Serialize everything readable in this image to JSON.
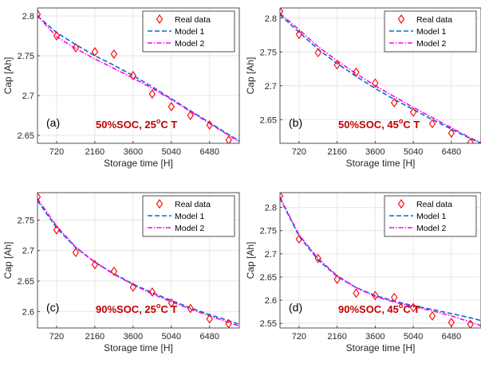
{
  "colors": {
    "real": "#ff0000",
    "model1": "#0072bd",
    "model2": "#ff00ff",
    "condition": "#c00000",
    "grid": "#e6e6e6",
    "axis": "#262626"
  },
  "chart_data": [
    {
      "type": "line",
      "panel_label": "(a)",
      "condition": {
        "main": "50%SOC, 25",
        "sup": "o",
        "suffix": "C T"
      },
      "xlabel": "Storage time [H]",
      "ylabel": "Cap [Ah]",
      "xlim": [
        0,
        7600
      ],
      "ylim": [
        2.64,
        2.81
      ],
      "xticks": [
        720,
        2160,
        3600,
        5040,
        6480
      ],
      "yticks": [
        2.65,
        2.7,
        2.75,
        2.8
      ],
      "legend": [
        "Real data",
        "Model 1",
        "Model 2"
      ],
      "legend_position": "top-right",
      "grid": true,
      "series": [
        {
          "name": "Real data",
          "kind": "marker",
          "x": [
            0,
            720,
            1440,
            2160,
            2880,
            3600,
            4320,
            5040,
            5760,
            6480,
            7200
          ],
          "y": [
            2.802,
            2.775,
            2.76,
            2.755,
            2.752,
            2.725,
            2.702,
            2.686,
            2.675,
            2.663,
            2.644
          ]
        },
        {
          "name": "Model 1",
          "kind": "dashed",
          "x": [
            0,
            720,
            1440,
            2160,
            2880,
            3600,
            4320,
            5040,
            5760,
            6480,
            7200,
            7600
          ],
          "y": [
            2.8,
            2.779,
            2.764,
            2.75,
            2.738,
            2.725,
            2.711,
            2.696,
            2.681,
            2.666,
            2.651,
            2.643
          ]
        },
        {
          "name": "Model 2",
          "kind": "dashdot",
          "x": [
            0,
            720,
            1440,
            2160,
            2880,
            3600,
            4320,
            5040,
            5760,
            6480,
            7200,
            7600
          ],
          "y": [
            2.8,
            2.774,
            2.759,
            2.746,
            2.734,
            2.722,
            2.709,
            2.695,
            2.68,
            2.665,
            2.65,
            2.642
          ]
        }
      ]
    },
    {
      "type": "line",
      "panel_label": "(b)",
      "condition": {
        "main": "50%SOC, 45",
        "sup": "o",
        "suffix": "C T"
      },
      "xlabel": "Storage time [H]",
      "ylabel": "Cap [Ah]",
      "xlim": [
        0,
        7600
      ],
      "ylim": [
        2.615,
        2.815
      ],
      "xticks": [
        720,
        2160,
        3600,
        5040,
        6480
      ],
      "yticks": [
        2.65,
        2.7,
        2.75,
        2.8
      ],
      "legend": [
        "Real data",
        "Model 1",
        "Model 2"
      ],
      "legend_position": "top-right",
      "grid": true,
      "series": [
        {
          "name": "Real data",
          "kind": "marker",
          "x": [
            0,
            720,
            1440,
            2160,
            2880,
            3600,
            4320,
            5040,
            5760,
            6480,
            7200
          ],
          "y": [
            2.81,
            2.776,
            2.749,
            2.731,
            2.72,
            2.704,
            2.675,
            2.661,
            2.644,
            2.63,
            2.616
          ]
        },
        {
          "name": "Model 1",
          "kind": "dashed",
          "x": [
            0,
            720,
            1440,
            2160,
            2880,
            3600,
            4320,
            5040,
            5760,
            6480,
            7200,
            7600
          ],
          "y": [
            2.805,
            2.779,
            2.754,
            2.733,
            2.714,
            2.696,
            2.68,
            2.665,
            2.65,
            2.636,
            2.622,
            2.615
          ]
        },
        {
          "name": "Model 2",
          "kind": "dashdot",
          "x": [
            0,
            720,
            1440,
            2160,
            2880,
            3600,
            4320,
            5040,
            5760,
            6480,
            7200,
            7600
          ],
          "y": [
            2.807,
            2.783,
            2.758,
            2.737,
            2.718,
            2.7,
            2.684,
            2.668,
            2.653,
            2.638,
            2.623,
            2.616
          ]
        }
      ]
    },
    {
      "type": "line",
      "panel_label": "(c)",
      "condition": {
        "main": "90%SOC, 25",
        "sup": "o",
        "suffix": "C T"
      },
      "xlabel": "Storage time [H]",
      "ylabel": "Cap [Ah]",
      "xlim": [
        0,
        7600
      ],
      "ylim": [
        2.573,
        2.795
      ],
      "xticks": [
        720,
        2160,
        3600,
        5040,
        6480
      ],
      "yticks": [
        2.6,
        2.65,
        2.7,
        2.75
      ],
      "legend": [
        "Real data",
        "Model 1",
        "Model 2"
      ],
      "legend_position": "top-right",
      "grid": true,
      "series": [
        {
          "name": "Real data",
          "kind": "marker",
          "x": [
            0,
            720,
            1440,
            2160,
            2880,
            3600,
            4320,
            5040,
            5760,
            6480,
            7200
          ],
          "y": [
            2.788,
            2.734,
            2.697,
            2.677,
            2.666,
            2.64,
            2.632,
            2.614,
            2.605,
            2.588,
            2.58
          ]
        },
        {
          "name": "Model 1",
          "kind": "dashed",
          "x": [
            0,
            720,
            1440,
            2160,
            2880,
            3600,
            4320,
            5040,
            5760,
            6480,
            7200,
            7600
          ],
          "y": [
            2.782,
            2.737,
            2.705,
            2.681,
            2.662,
            2.645,
            2.631,
            2.618,
            2.606,
            2.595,
            2.585,
            2.579
          ]
        },
        {
          "name": "Model 2",
          "kind": "dashdot",
          "x": [
            0,
            720,
            1440,
            2160,
            2880,
            3600,
            4320,
            5040,
            5760,
            6480,
            7200,
            7600
          ],
          "y": [
            2.785,
            2.74,
            2.706,
            2.681,
            2.661,
            2.644,
            2.629,
            2.616,
            2.604,
            2.593,
            2.582,
            2.576
          ]
        }
      ]
    },
    {
      "type": "line",
      "panel_label": "(d)",
      "condition": {
        "main": "90%SOC, 45",
        "sup": "o",
        "suffix": "C T"
      },
      "xlabel": "Storage time [H]",
      "ylabel": "Cap [Ah]",
      "xlim": [
        0,
        7600
      ],
      "ylim": [
        2.54,
        2.832
      ],
      "xticks": [
        720,
        2160,
        3600,
        5040,
        6480
      ],
      "yticks": [
        2.55,
        2.6,
        2.65,
        2.7,
        2.75,
        2.8
      ],
      "legend": [
        "Real data",
        "Model 1",
        "Model 2"
      ],
      "legend_position": "top-right",
      "grid": true,
      "series": [
        {
          "name": "Real data",
          "kind": "marker",
          "x": [
            0,
            720,
            1440,
            2160,
            2880,
            3600,
            4320,
            5040,
            5760,
            6480,
            7200
          ],
          "y": [
            2.825,
            2.732,
            2.69,
            2.645,
            2.615,
            2.61,
            2.606,
            2.584,
            2.566,
            2.552,
            2.548
          ]
        },
        {
          "name": "Model 1",
          "kind": "dashed",
          "x": [
            0,
            720,
            1440,
            2160,
            2880,
            3600,
            4320,
            5040,
            5760,
            6480,
            7200,
            7600
          ],
          "y": [
            2.82,
            2.738,
            2.687,
            2.651,
            2.627,
            2.61,
            2.598,
            2.588,
            2.58,
            2.571,
            2.562,
            2.556
          ]
        },
        {
          "name": "Model 2",
          "kind": "dashdot",
          "x": [
            0,
            720,
            1440,
            2160,
            2880,
            3600,
            4320,
            5040,
            5760,
            6480,
            7200,
            7600
          ],
          "y": [
            2.822,
            2.741,
            2.69,
            2.653,
            2.627,
            2.608,
            2.596,
            2.586,
            2.577,
            2.566,
            2.553,
            2.545
          ]
        }
      ]
    }
  ]
}
